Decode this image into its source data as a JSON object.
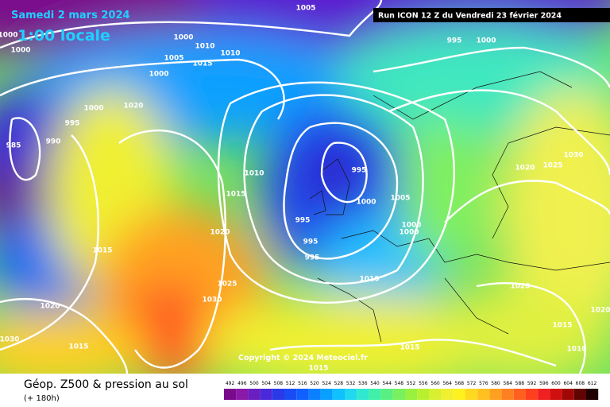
{
  "header": {
    "date": "Samedi 2 mars 2024",
    "time": "1:00 locale",
    "run": "Run ICON 12 Z du Vendredi 23 février 2024"
  },
  "copyright": "Copyright © 2024 Meteociel.fr",
  "footer": {
    "title": "Géop. Z500 & pression au sol",
    "lead": "(+ 180h)"
  },
  "isobar_labels": [
    "1005",
    "1000",
    "1000",
    "1000",
    "1005",
    "1010",
    "1010",
    "1015",
    "1000",
    "1000",
    "1020",
    "995",
    "990",
    "985",
    "995",
    "1000",
    "1010",
    "1015",
    "1020",
    "1015",
    "1025",
    "1030",
    "1020",
    "1030",
    "1015",
    "995",
    "1000",
    "1005",
    "1000",
    "1000",
    "995",
    "995",
    "995",
    "1010",
    "1020",
    "1025",
    "1030",
    "1020",
    "1015",
    "1010",
    "1015",
    "1015",
    "1020"
  ],
  "legend_scale": {
    "labels": [
      492,
      496,
      500,
      504,
      508,
      512,
      516,
      520,
      524,
      528,
      532,
      536,
      540,
      544,
      548,
      552,
      556,
      560,
      564,
      568,
      572,
      576,
      580,
      584,
      588,
      592,
      596,
      600,
      604,
      608,
      612
    ],
    "colors": [
      "#7a0a8c",
      "#8a18a8",
      "#6a1fc0",
      "#4a2ad8",
      "#2a3ae8",
      "#1a4cf4",
      "#1060ff",
      "#0a80ff",
      "#08a0ff",
      "#10c0ff",
      "#20d8f0",
      "#30e8d0",
      "#40f0a8",
      "#58f080",
      "#78f060",
      "#98f040",
      "#b8f030",
      "#d8f030",
      "#f0f030",
      "#fff020",
      "#ffd820",
      "#ffc020",
      "#ffa020",
      "#ff8020",
      "#ff6020",
      "#ff4020",
      "#f02020",
      "#d01010",
      "#a00808",
      "#600404",
      "#200000"
    ]
  }
}
